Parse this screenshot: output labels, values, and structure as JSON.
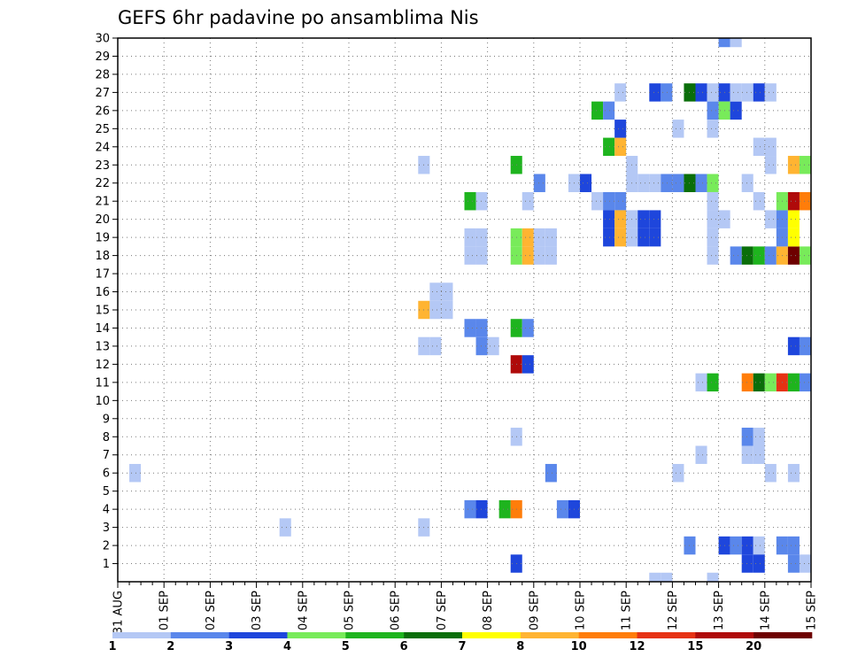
{
  "chart_data": {
    "type": "heatmap",
    "title": "GEFS 6hr padavine po ansamblima Nis",
    "xlabel": "",
    "ylabel": "",
    "x_tick_labels": [
      "31 AUG",
      "01 SEP",
      "02 SEP",
      "03 SEP",
      "04 SEP",
      "05 SEP",
      "06 SEP",
      "07 SEP",
      "08 SEP",
      "09 SEP",
      "10 SEP",
      "11 SEP",
      "12 SEP",
      "13 SEP",
      "14 SEP",
      "15 SEP"
    ],
    "y_tick_labels": [
      "1",
      "2",
      "3",
      "4",
      "5",
      "6",
      "7",
      "8",
      "9",
      "10",
      "11",
      "12",
      "13",
      "14",
      "15",
      "16",
      "17",
      "18",
      "19",
      "20",
      "21",
      "22",
      "23",
      "24",
      "25",
      "26",
      "27",
      "28",
      "29",
      "30"
    ],
    "x_range_days": [
      0,
      15
    ],
    "time_step_days": 0.25,
    "y_range": [
      0,
      30
    ],
    "grid": "dotted",
    "legend": {
      "placement": "bottom",
      "labels": [
        "1",
        "2",
        "3",
        "4",
        "5",
        "6",
        "7",
        "8",
        "10",
        "12",
        "15",
        "20"
      ],
      "colors": [
        "#b4c8f5",
        "#5a87eb",
        "#1e46dc",
        "#78eb5a",
        "#1eb41e",
        "#0a6e0a",
        "#ffff00",
        "#ffb432",
        "#ff7d0a",
        "#e63214",
        "#af0a0a",
        "#6e0000"
      ]
    },
    "cells": [
      {
        "x": 0.25,
        "y": 6,
        "c": 1
      },
      {
        "x": 3.5,
        "y": 3,
        "c": 1
      },
      {
        "x": 6.5,
        "y": 23,
        "c": 1
      },
      {
        "x": 6.5,
        "y": 13,
        "c": 1
      },
      {
        "x": 6.75,
        "y": 13,
        "c": 1
      },
      {
        "x": 6.5,
        "y": 15,
        "c": 8
      },
      {
        "x": 6.75,
        "y": 15,
        "c": 1
      },
      {
        "x": 7.0,
        "y": 15,
        "c": 1
      },
      {
        "x": 6.75,
        "y": 16,
        "c": 1
      },
      {
        "x": 7.0,
        "y": 16,
        "c": 1
      },
      {
        "x": 6.5,
        "y": 3,
        "c": 1
      },
      {
        "x": 7.5,
        "y": 21,
        "c": 5
      },
      {
        "x": 7.75,
        "y": 21,
        "c": 1
      },
      {
        "x": 7.5,
        "y": 18,
        "c": 1
      },
      {
        "x": 7.75,
        "y": 18,
        "c": 1
      },
      {
        "x": 7.5,
        "y": 19,
        "c": 1
      },
      {
        "x": 7.75,
        "y": 19,
        "c": 1
      },
      {
        "x": 7.5,
        "y": 14,
        "c": 2
      },
      {
        "x": 7.75,
        "y": 14,
        "c": 2
      },
      {
        "x": 7.75,
        "y": 13,
        "c": 2
      },
      {
        "x": 8.0,
        "y": 13,
        "c": 1
      },
      {
        "x": 7.5,
        "y": 4,
        "c": 2
      },
      {
        "x": 7.75,
        "y": 4,
        "c": 3
      },
      {
        "x": 8.25,
        "y": 4,
        "c": 5
      },
      {
        "x": 8.5,
        "y": 4,
        "c": 9
      },
      {
        "x": 8.5,
        "y": 23,
        "c": 5
      },
      {
        "x": 8.5,
        "y": 19,
        "c": 4
      },
      {
        "x": 8.75,
        "y": 19,
        "c": 8
      },
      {
        "x": 9.0,
        "y": 19,
        "c": 1
      },
      {
        "x": 9.25,
        "y": 19,
        "c": 1
      },
      {
        "x": 8.5,
        "y": 18,
        "c": 4
      },
      {
        "x": 8.75,
        "y": 18,
        "c": 8
      },
      {
        "x": 9.0,
        "y": 18,
        "c": 1
      },
      {
        "x": 9.25,
        "y": 18,
        "c": 1
      },
      {
        "x": 8.5,
        "y": 14,
        "c": 5
      },
      {
        "x": 8.75,
        "y": 14,
        "c": 2
      },
      {
        "x": 8.5,
        "y": 12,
        "c": 11
      },
      {
        "x": 8.75,
        "y": 12,
        "c": 3
      },
      {
        "x": 8.5,
        "y": 8,
        "c": 1
      },
      {
        "x": 8.5,
        "y": 1,
        "c": 3
      },
      {
        "x": 8.75,
        "y": 21,
        "c": 1
      },
      {
        "x": 9.0,
        "y": 22,
        "c": 2
      },
      {
        "x": 9.25,
        "y": 6,
        "c": 2
      },
      {
        "x": 9.5,
        "y": 4,
        "c": 2
      },
      {
        "x": 9.75,
        "y": 4,
        "c": 3
      },
      {
        "x": 9.75,
        "y": 22,
        "c": 1
      },
      {
        "x": 10.0,
        "y": 22,
        "c": 3
      },
      {
        "x": 10.25,
        "y": 26,
        "c": 5
      },
      {
        "x": 10.5,
        "y": 26,
        "c": 2
      },
      {
        "x": 10.25,
        "y": 21,
        "c": 1
      },
      {
        "x": 10.5,
        "y": 21,
        "c": 2
      },
      {
        "x": 10.75,
        "y": 21,
        "c": 2
      },
      {
        "x": 10.5,
        "y": 24,
        "c": 5
      },
      {
        "x": 10.75,
        "y": 24,
        "c": 8
      },
      {
        "x": 10.5,
        "y": 20,
        "c": 3
      },
      {
        "x": 10.75,
        "y": 20,
        "c": 8
      },
      {
        "x": 10.5,
        "y": 19,
        "c": 3
      },
      {
        "x": 10.75,
        "y": 19,
        "c": 8
      },
      {
        "x": 10.75,
        "y": 27,
        "c": 1
      },
      {
        "x": 10.75,
        "y": 25,
        "c": 3
      },
      {
        "x": 11.0,
        "y": 23,
        "c": 1
      },
      {
        "x": 11.0,
        "y": 22,
        "c": 1
      },
      {
        "x": 11.25,
        "y": 22,
        "c": 1
      },
      {
        "x": 11.5,
        "y": 22,
        "c": 1
      },
      {
        "x": 11.75,
        "y": 22,
        "c": 2
      },
      {
        "x": 11.0,
        "y": 20,
        "c": 1
      },
      {
        "x": 11.0,
        "y": 19,
        "c": 1
      },
      {
        "x": 11.25,
        "y": 20,
        "c": 3
      },
      {
        "x": 11.5,
        "y": 20,
        "c": 3
      },
      {
        "x": 11.25,
        "y": 19,
        "c": 3
      },
      {
        "x": 11.5,
        "y": 19,
        "c": 3
      },
      {
        "x": 11.5,
        "y": 27,
        "c": 3
      },
      {
        "x": 11.75,
        "y": 27,
        "c": 2
      },
      {
        "x": 12.0,
        "y": 25,
        "c": 1
      },
      {
        "x": 11.5,
        "y": 0,
        "c": 1
      },
      {
        "x": 11.75,
        "y": 0,
        "c": 1
      },
      {
        "x": 12.0,
        "y": 6,
        "c": 1
      },
      {
        "x": 12.0,
        "y": 22,
        "c": 2
      },
      {
        "x": 12.25,
        "y": 22,
        "c": 6
      },
      {
        "x": 12.5,
        "y": 22,
        "c": 2
      },
      {
        "x": 12.75,
        "y": 22,
        "c": 4
      },
      {
        "x": 12.25,
        "y": 27,
        "c": 6
      },
      {
        "x": 12.5,
        "y": 27,
        "c": 3
      },
      {
        "x": 12.75,
        "y": 27,
        "c": 1
      },
      {
        "x": 13.0,
        "y": 27,
        "c": 3
      },
      {
        "x": 12.25,
        "y": 2,
        "c": 2
      },
      {
        "x": 12.75,
        "y": 26,
        "c": 2
      },
      {
        "x": 13.0,
        "y": 26,
        "c": 4
      },
      {
        "x": 13.25,
        "y": 26,
        "c": 3
      },
      {
        "x": 12.75,
        "y": 25,
        "c": 1
      },
      {
        "x": 12.75,
        "y": 21,
        "c": 1
      },
      {
        "x": 12.75,
        "y": 20,
        "c": 1
      },
      {
        "x": 13.0,
        "y": 20,
        "c": 1
      },
      {
        "x": 12.75,
        "y": 19,
        "c": 1
      },
      {
        "x": 12.75,
        "y": 18,
        "c": 1
      },
      {
        "x": 12.75,
        "y": 0,
        "c": 1
      },
      {
        "x": 12.5,
        "y": 11,
        "c": 1
      },
      {
        "x": 12.75,
        "y": 11,
        "c": 5
      },
      {
        "x": 12.5,
        "y": 7,
        "c": 1
      },
      {
        "x": 13.0,
        "y": 30,
        "c": 2
      },
      {
        "x": 13.25,
        "y": 30,
        "c": 1
      },
      {
        "x": 13.0,
        "y": 2,
        "c": 3
      },
      {
        "x": 13.25,
        "y": 2,
        "c": 2
      },
      {
        "x": 13.5,
        "y": 2,
        "c": 3
      },
      {
        "x": 13.75,
        "y": 2,
        "c": 1
      },
      {
        "x": 13.5,
        "y": 1,
        "c": 3
      },
      {
        "x": 13.75,
        "y": 1,
        "c": 3
      },
      {
        "x": 13.25,
        "y": 27,
        "c": 1
      },
      {
        "x": 13.5,
        "y": 27,
        "c": 1
      },
      {
        "x": 13.75,
        "y": 27,
        "c": 3
      },
      {
        "x": 14.0,
        "y": 27,
        "c": 1
      },
      {
        "x": 13.25,
        "y": 18,
        "c": 2
      },
      {
        "x": 13.5,
        "y": 18,
        "c": 6
      },
      {
        "x": 13.75,
        "y": 18,
        "c": 5
      },
      {
        "x": 14.0,
        "y": 18,
        "c": 2
      },
      {
        "x": 14.25,
        "y": 18,
        "c": 8
      },
      {
        "x": 14.5,
        "y": 18,
        "c": 12
      },
      {
        "x": 14.75,
        "y": 18,
        "c": 4
      },
      {
        "x": 13.5,
        "y": 11,
        "c": 9
      },
      {
        "x": 13.75,
        "y": 11,
        "c": 6
      },
      {
        "x": 14.0,
        "y": 11,
        "c": 4
      },
      {
        "x": 14.25,
        "y": 11,
        "c": 10
      },
      {
        "x": 14.5,
        "y": 11,
        "c": 5
      },
      {
        "x": 14.75,
        "y": 11,
        "c": 2
      },
      {
        "x": 13.5,
        "y": 8,
        "c": 2
      },
      {
        "x": 13.75,
        "y": 8,
        "c": 1
      },
      {
        "x": 13.5,
        "y": 7,
        "c": 1
      },
      {
        "x": 13.75,
        "y": 7,
        "c": 1
      },
      {
        "x": 13.5,
        "y": 22,
        "c": 1
      },
      {
        "x": 13.75,
        "y": 21,
        "c": 1
      },
      {
        "x": 13.75,
        "y": 24,
        "c": 1
      },
      {
        "x": 14.0,
        "y": 24,
        "c": 1
      },
      {
        "x": 14.0,
        "y": 23,
        "c": 1
      },
      {
        "x": 14.0,
        "y": 20,
        "c": 1
      },
      {
        "x": 14.25,
        "y": 20,
        "c": 2
      },
      {
        "x": 14.5,
        "y": 20,
        "c": 7
      },
      {
        "x": 14.25,
        "y": 21,
        "c": 4
      },
      {
        "x": 14.5,
        "y": 21,
        "c": 11
      },
      {
        "x": 14.75,
        "y": 21,
        "c": 9
      },
      {
        "x": 14.25,
        "y": 19,
        "c": 2
      },
      {
        "x": 14.5,
        "y": 19,
        "c": 7
      },
      {
        "x": 14.5,
        "y": 23,
        "c": 8
      },
      {
        "x": 14.75,
        "y": 23,
        "c": 4
      },
      {
        "x": 14.5,
        "y": 13,
        "c": 3
      },
      {
        "x": 14.75,
        "y": 13,
        "c": 2
      },
      {
        "x": 14.0,
        "y": 6,
        "c": 1
      },
      {
        "x": 14.5,
        "y": 6,
        "c": 1
      },
      {
        "x": 14.25,
        "y": 2,
        "c": 2
      },
      {
        "x": 14.5,
        "y": 2,
        "c": 2
      },
      {
        "x": 14.5,
        "y": 1,
        "c": 2
      },
      {
        "x": 14.75,
        "y": 1,
        "c": 1
      }
    ]
  }
}
